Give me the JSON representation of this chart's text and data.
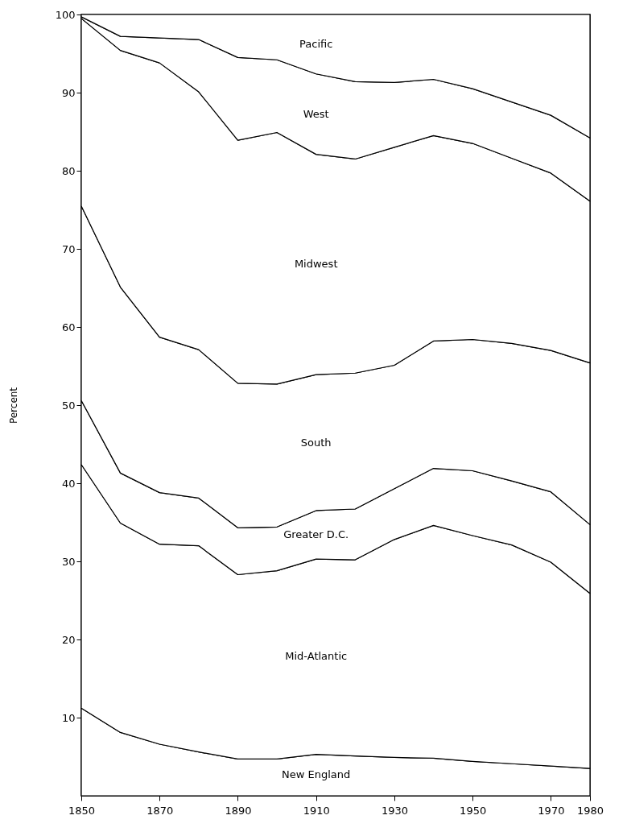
{
  "chart_data": {
    "type": "area",
    "stacked": true,
    "ylabel": "Percent",
    "x": [
      1850,
      1860,
      1870,
      1880,
      1890,
      1900,
      1910,
      1920,
      1930,
      1940,
      1950,
      1960,
      1970,
      1980
    ],
    "xlim": [
      1850,
      1980
    ],
    "xticks": [
      1850,
      1870,
      1890,
      1910,
      1930,
      1950,
      1970,
      1980
    ],
    "ylim": [
      0,
      100
    ],
    "yticks": [
      10,
      20,
      30,
      40,
      50,
      60,
      70,
      80,
      90,
      100
    ],
    "series": [
      {
        "name": "New England",
        "color": "#000000",
        "values": [
          11.2,
          8.1,
          6.6,
          5.6,
          4.7,
          4.7,
          5.3,
          5.1,
          4.9,
          4.8,
          4.4,
          4.1,
          3.8,
          3.5
        ]
      },
      {
        "name": "Mid-Atlantic",
        "color": "#000000",
        "values": [
          31.2,
          26.8,
          25.6,
          26.4,
          23.6,
          24.1,
          25.0,
          25.1,
          27.9,
          29.8,
          28.9,
          28.0,
          26.1,
          22.4
        ]
      },
      {
        "name": "Greater D.C.",
        "color": "#000000",
        "values": [
          8.2,
          6.4,
          6.6,
          6.1,
          6.0,
          5.6,
          6.2,
          6.5,
          6.5,
          7.3,
          8.3,
          8.2,
          9.0,
          8.8
        ]
      },
      {
        "name": "South",
        "color": "#000000",
        "values": [
          24.9,
          23.8,
          19.9,
          19.0,
          18.5,
          18.3,
          17.4,
          17.4,
          15.8,
          16.3,
          16.8,
          17.6,
          18.1,
          20.7
        ]
      },
      {
        "name": "Midwest",
        "color": "#000000",
        "values": [
          24.0,
          30.3,
          35.1,
          33.0,
          31.1,
          32.2,
          28.2,
          27.4,
          27.9,
          26.3,
          25.1,
          23.7,
          22.7,
          20.7
        ]
      },
      {
        "name": "West",
        "color": "#000000",
        "values": [
          0.2,
          1.8,
          3.2,
          6.7,
          10.6,
          9.3,
          10.3,
          9.9,
          8.3,
          7.2,
          7.0,
          7.2,
          7.4,
          8.1
        ]
      },
      {
        "name": "Pacific",
        "color": "#000000",
        "values": [
          0.3,
          2.8,
          3.0,
          3.2,
          5.5,
          5.8,
          7.6,
          8.6,
          8.7,
          8.3,
          9.5,
          11.2,
          12.9,
          15.8
        ]
      }
    ]
  }
}
